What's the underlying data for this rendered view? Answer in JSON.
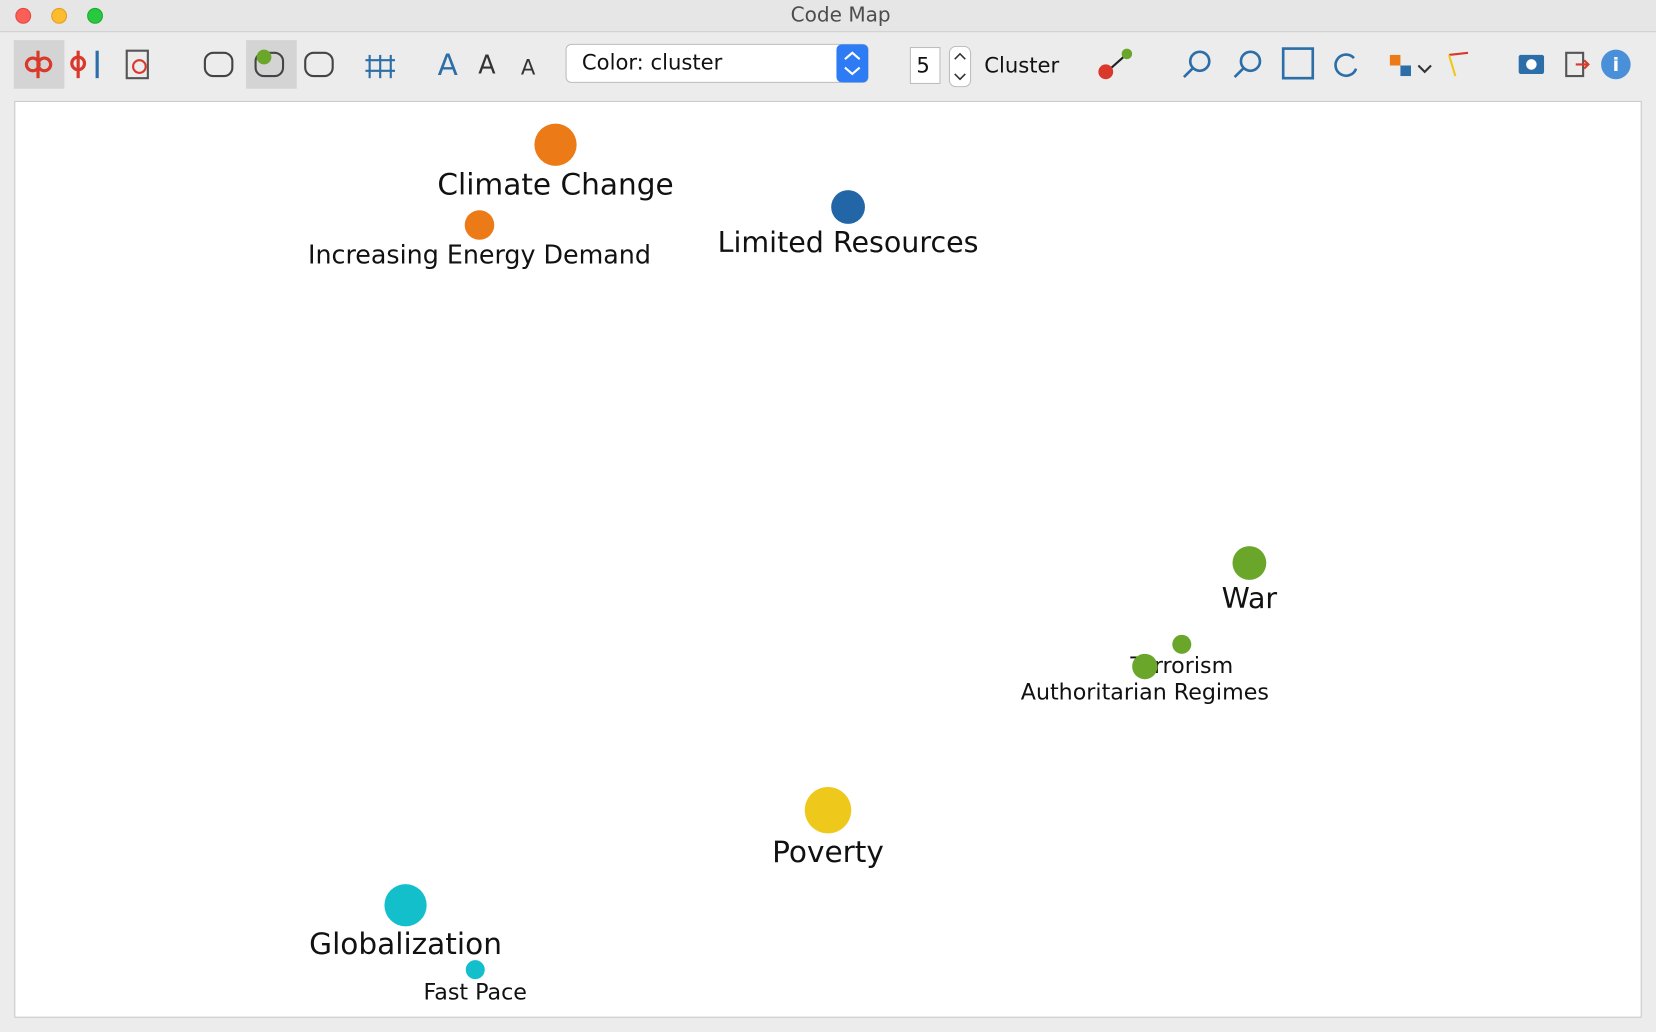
{
  "window": {
    "title": "Code Map"
  },
  "toolbar": {
    "color_select": "Color: cluster",
    "cluster_count": "5",
    "cluster_label": "Cluster"
  },
  "map": {
    "nodes": [
      {
        "label": "Climate Change",
        "color": "#ec7a17"
      },
      {
        "label": "Increasing Energy Demand",
        "color": "#ec7a17"
      },
      {
        "label": "Limited Resources",
        "color": "#2366a8"
      },
      {
        "label": "War",
        "color": "#6aa62a"
      },
      {
        "label": "Terrorism",
        "color": "#6aa62a"
      },
      {
        "label": "Authoritarian Regimes",
        "color": "#6aa62a"
      },
      {
        "label": "Poverty",
        "color": "#eec81b"
      },
      {
        "label": "Globalization",
        "color": "#14bfcc"
      },
      {
        "label": "Fast Pace",
        "color": "#14bfcc"
      }
    ]
  }
}
